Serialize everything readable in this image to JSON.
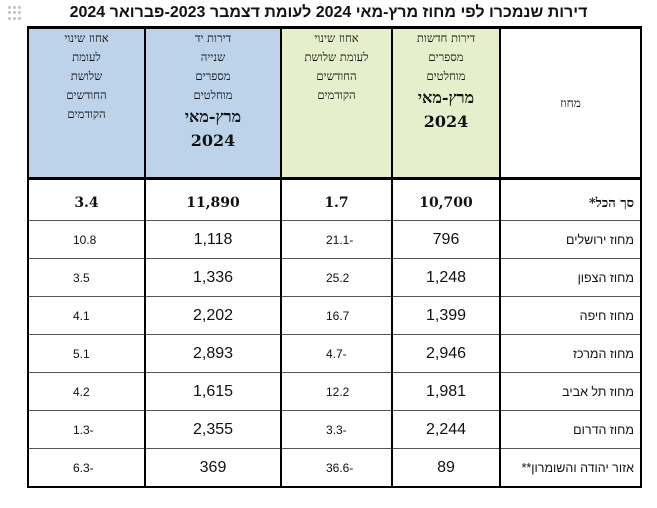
{
  "title": "דירות שנמכרו לפי מחוז מרץ-מאי  2024 לעומת דצמבר 2023-פברואר 2024",
  "colors": {
    "green_header": "#e6efcb",
    "blue_header": "#bcd3ea"
  },
  "headers": {
    "district": "מחוז",
    "new_sold": {
      "lines": [
        "דירות חדשות",
        "מספרים",
        "מוחלטים"
      ],
      "period": "מרץ-מאי",
      "year": "2024"
    },
    "new_pct": {
      "lines": [
        "אחוז שינוי",
        "לעומת שלושת",
        "החודשים",
        "הקודמים"
      ]
    },
    "used_sold": {
      "lines": [
        "דירות יד",
        "שנייה",
        "מספרים",
        "מוחלטים"
      ],
      "period": "מרץ-מאי",
      "year": "2024"
    },
    "used_pct": {
      "lines": [
        "אחוז שינוי",
        "לעומת",
        "שלושת",
        "החודשים",
        "הקודמים"
      ]
    }
  },
  "total": {
    "district": "סך הכל*",
    "new_sold": "10,700",
    "new_pct": "1.7",
    "used_sold": "11,890",
    "used_pct": "3.4"
  },
  "rows": [
    {
      "district": "מחוז ירושלים",
      "new_sold": "796",
      "new_pct": "21.1-",
      "used_sold": "1,118",
      "used_pct": "10.8"
    },
    {
      "district": "מחוז הצפון",
      "new_sold": "1,248",
      "new_pct": "25.2",
      "used_sold": "1,336",
      "used_pct": "3.5"
    },
    {
      "district": "מחוז חיפה",
      "new_sold": "1,399",
      "new_pct": "16.7",
      "used_sold": "2,202",
      "used_pct": "4.1"
    },
    {
      "district": "מחוז המרכז",
      "new_sold": "2,946",
      "new_pct": "4.7-",
      "used_sold": "2,893",
      "used_pct": "5.1"
    },
    {
      "district": "מחוז תל אביב",
      "new_sold": "1,981",
      "new_pct": "12.2",
      "used_sold": "1,615",
      "used_pct": "4.2"
    },
    {
      "district": "מחוז הדרום",
      "new_sold": "2,244",
      "new_pct": "3.3-",
      "used_sold": "2,355",
      "used_pct": "1.3-"
    },
    {
      "district": "אזור יהודה והשומרון**",
      "new_sold": "89",
      "new_pct": "36.6-",
      "used_sold": "369",
      "used_pct": "6.3-"
    }
  ]
}
